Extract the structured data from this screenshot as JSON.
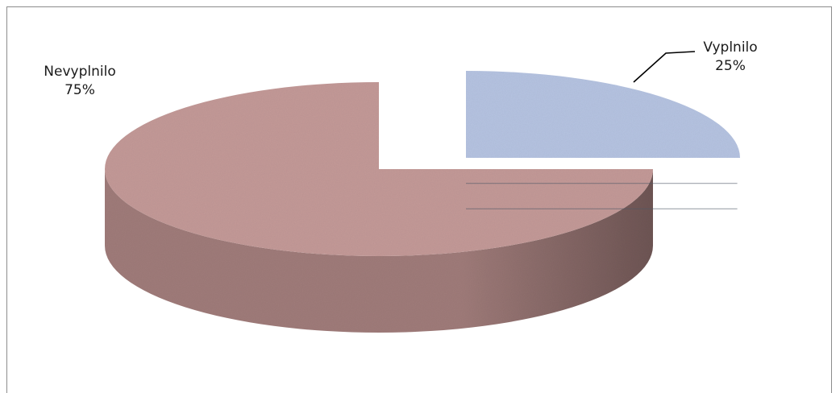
{
  "chart_data": {
    "type": "pie",
    "style": "3d-exploded",
    "title": "",
    "slices": [
      {
        "label": "Vyplnilo",
        "percent_label": "25%",
        "value": 25,
        "color": "#b6c4e2",
        "side_color": "#5d6878",
        "exploded": true
      },
      {
        "label": "Nevyplnilo",
        "percent_label": "75%",
        "value": 75,
        "color": "#c49a98",
        "side_color": "#a07c7a",
        "exploded": false
      }
    ],
    "data_labels": "outside",
    "legend": "none"
  }
}
